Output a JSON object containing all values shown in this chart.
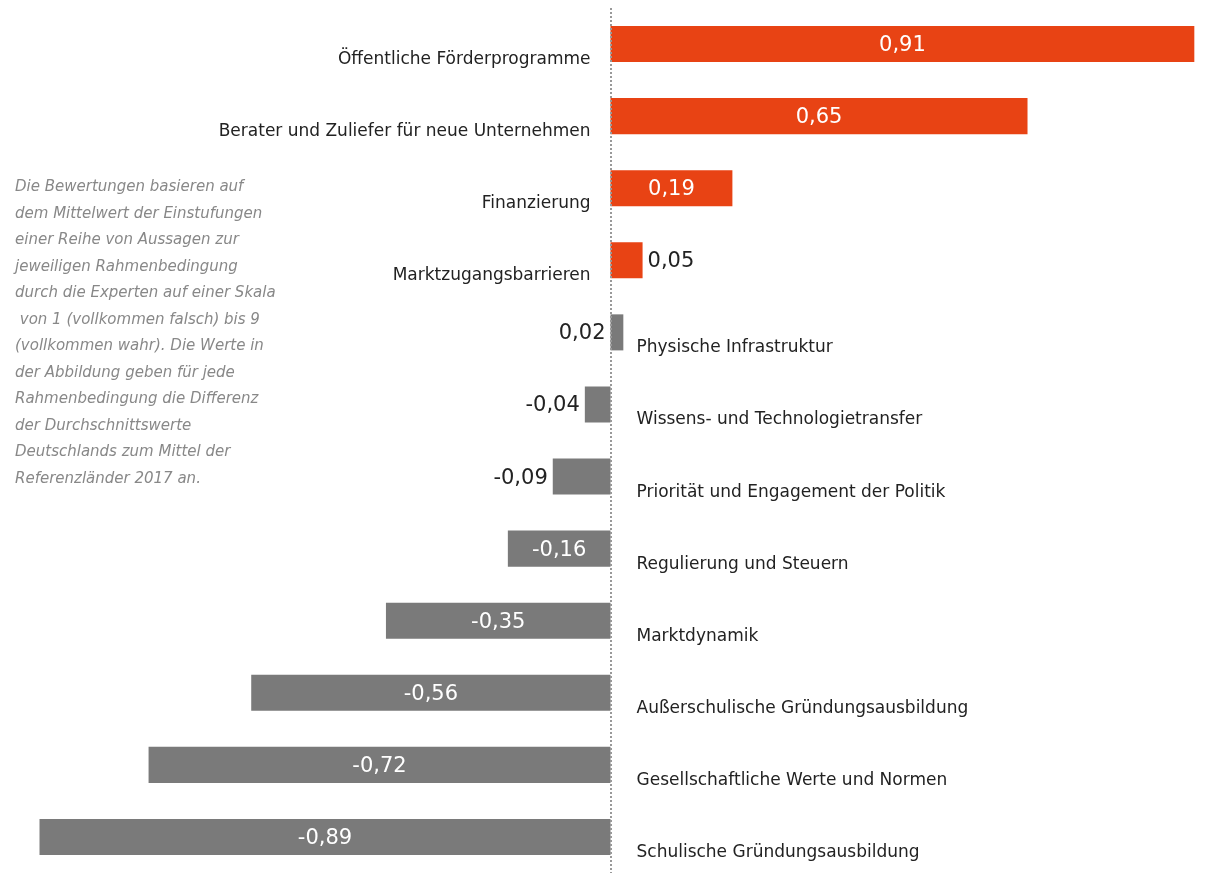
{
  "chart_data": {
    "type": "bar",
    "orientation": "horizontal",
    "categories": [
      "Öffentliche Förderprogramme",
      "Berater und Zuliefer für neue Unternehmen",
      "Finanzierung",
      "Marktzugangsbarrieren",
      "Physische Infrastruktur",
      "Wissens- und Technologietransfer",
      "Priorität und Engagement der Politik",
      "Regulierung und Steuern",
      "Marktdynamik",
      "Außerschulische Gründungsausbildung",
      "Gesellschaftliche Werte und Normen",
      "Schulische Gründungsausbildung"
    ],
    "values": [
      0.91,
      0.65,
      0.19,
      0.05,
      0.02,
      -0.04,
      -0.09,
      -0.16,
      -0.35,
      -0.56,
      -0.72,
      -0.89
    ],
    "colors": [
      "#e84314",
      "#e84314",
      "#e84314",
      "#e84314",
      "#7a7a7a",
      "#7a7a7a",
      "#7a7a7a",
      "#7a7a7a",
      "#7a7a7a",
      "#7a7a7a",
      "#7a7a7a",
      "#7a7a7a"
    ],
    "ref_lines": [
      {
        "axis": "x",
        "value": 0,
        "color": "#999999",
        "line_style": "dotted"
      }
    ],
    "value_labels": [
      "0,91",
      "0,65",
      "0,19",
      "0,05",
      "0,02",
      "-0,04",
      "-0,09",
      "-0,16",
      "-0,35",
      "-0,56",
      "-0,72",
      "-0,89"
    ],
    "annotations": [
      "Die Bewertungen basieren auf dem Mittelwert der Einstufungen einer Reihe von Aussagen zur jeweiligen Rahmenbedingung durch die Experten auf einer Skala von 1 (vollkommen falsch) bis 9 (vollkommen wahr). Die Werte in der Abbildung geben für jede Rahmenbedingung die Differenz der Durchschnittswerte Deutschlands zum Mittel der Referenzländer 2017 an."
    ]
  }
}
